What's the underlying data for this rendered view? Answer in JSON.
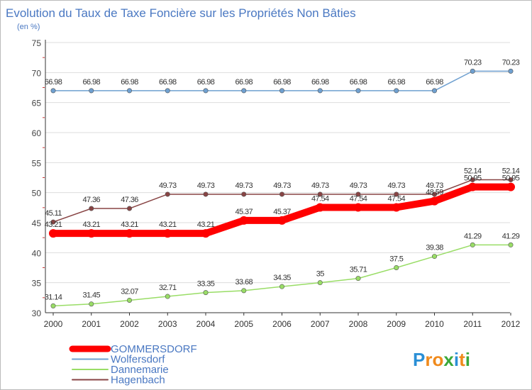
{
  "chart_data": {
    "type": "line",
    "title": "Evolution du Taux de Taxe Foncière sur les Propriétés Non Bâties",
    "subtitle": "(en %)",
    "x": [
      "2000",
      "2001",
      "2002",
      "2003",
      "2004",
      "2005",
      "2006",
      "2007",
      "2008",
      "2009",
      "2010",
      "2011",
      "2012"
    ],
    "ylim": [
      30,
      75
    ],
    "yticks": [
      "30",
      "35",
      "40",
      "45",
      "50",
      "55",
      "60",
      "65",
      "70",
      "75"
    ],
    "grid": "horizontal",
    "legend_position": "bottom-left",
    "series": [
      {
        "name": "GOMMERSDORF",
        "color": "#ff0000",
        "values": [
          43.21,
          43.21,
          43.21,
          43.21,
          43.21,
          45.37,
          45.37,
          47.54,
          47.54,
          47.54,
          48.59,
          50.95,
          50.95
        ],
        "labels": [
          "43.21",
          "43.21",
          "43.21",
          "43.21",
          "43.21",
          "45.37",
          "45.37",
          "47.54",
          "47.54",
          "47.54",
          "48.59",
          "50.95",
          "50.95"
        ]
      },
      {
        "name": "Wolfersdorf",
        "color": "#6fa0d0",
        "values": [
          66.98,
          66.98,
          66.98,
          66.98,
          66.98,
          66.98,
          66.98,
          66.98,
          66.98,
          66.98,
          66.98,
          70.23,
          70.23
        ],
        "labels": [
          "66.98",
          "66.98",
          "66.98",
          "66.98",
          "66.98",
          "66.98",
          "66.98",
          "66.98",
          "66.98",
          "66.98",
          "66.98",
          "70.23",
          "70.23"
        ]
      },
      {
        "name": "Dannemarie",
        "color": "#99dd66",
        "values": [
          31.14,
          31.45,
          32.07,
          32.71,
          33.35,
          33.68,
          34.35,
          35,
          35.71,
          37.5,
          39.38,
          41.29,
          41.29
        ],
        "labels": [
          "31.14",
          "31.45",
          "32.07",
          "32.71",
          "33.35",
          "33.68",
          "34.35",
          "35",
          "35.71",
          "37.5",
          "39.38",
          "41.29",
          "41.29"
        ]
      },
      {
        "name": "Hagenbach",
        "color": "#884444",
        "values": [
          45.11,
          47.36,
          47.36,
          49.73,
          49.73,
          49.73,
          49.73,
          49.73,
          49.73,
          49.73,
          49.73,
          52.14,
          52.14
        ],
        "labels": [
          "45.11",
          "47.36",
          "47.36",
          "49.73",
          "49.73",
          "49.73",
          "49.73",
          "49.73",
          "49.73",
          "49.73",
          "49.73",
          "52.14",
          "52.14"
        ]
      }
    ]
  },
  "brand": {
    "logo_text": "Proxiti",
    "logo_letters": [
      "P",
      "r",
      "o",
      "x",
      "i",
      "t",
      "i"
    ],
    "logo_colors": [
      "#2a8fd6",
      "#f08a1c",
      "#f08a1c",
      "#3aa83a",
      "#2a8fd6",
      "#f08a1c",
      "#3aa83a"
    ]
  }
}
